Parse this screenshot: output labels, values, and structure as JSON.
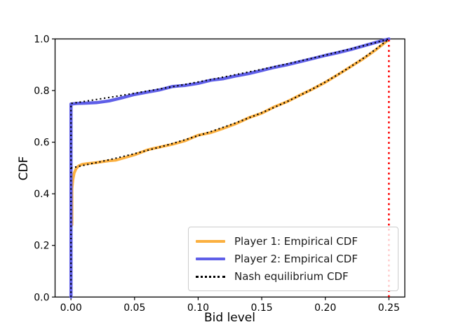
{
  "figure": {
    "xlabel": "Bid level",
    "ylabel": "CDF",
    "x_tick_labels": [
      "0.00",
      "0.05",
      "0.10",
      "0.15",
      "0.20",
      "0.25"
    ],
    "x_tick_values": [
      0,
      0.05,
      0.1,
      0.15,
      0.2,
      0.25
    ],
    "y_tick_labels": [
      "0.0",
      "0.2",
      "0.4",
      "0.6",
      "0.8",
      "1.0"
    ],
    "y_tick_values": [
      0,
      0.2,
      0.4,
      0.6,
      0.8,
      1.0
    ]
  },
  "legend": {
    "items": [
      {
        "label": "Player 1: Empirical CDF",
        "color": "#FBB040",
        "style": "solid"
      },
      {
        "label": "Player 2: Empirical CDF",
        "color": "#5F5FE8",
        "style": "solid"
      },
      {
        "label": "Nash equilibrium CDF",
        "color": "#000000",
        "style": "dotted"
      }
    ],
    "position": "lower right"
  },
  "chart_data": {
    "type": "line",
    "title": "",
    "xlabel": "Bid level",
    "ylabel": "CDF",
    "xlim": [
      -0.0125,
      0.2625
    ],
    "ylim": [
      0,
      1
    ],
    "grid": false,
    "legend_position": "lower right",
    "series": [
      {
        "name": "Player 1: Empirical CDF",
        "color": "#FBB040",
        "style": "solid",
        "width": 4,
        "points": [
          [
            0.0008,
            0.28
          ],
          [
            0.0008,
            0.42
          ],
          [
            0.0015,
            0.455
          ],
          [
            0.0025,
            0.48
          ],
          [
            0.004,
            0.497
          ],
          [
            0.006,
            0.508
          ],
          [
            0.009,
            0.5145
          ],
          [
            0.013,
            0.517
          ],
          [
            0.02,
            0.521
          ],
          [
            0.03,
            0.528
          ],
          [
            0.035,
            0.53
          ],
          [
            0.04,
            0.537
          ],
          [
            0.05,
            0.551
          ],
          [
            0.06,
            0.57
          ],
          [
            0.065,
            0.576
          ],
          [
            0.07,
            0.581
          ],
          [
            0.08,
            0.592
          ],
          [
            0.09,
            0.606
          ],
          [
            0.1,
            0.627
          ],
          [
            0.105,
            0.632
          ],
          [
            0.11,
            0.637
          ],
          [
            0.12,
            0.654
          ],
          [
            0.13,
            0.672
          ],
          [
            0.14,
            0.695
          ],
          [
            0.15,
            0.712
          ],
          [
            0.16,
            0.737
          ],
          [
            0.17,
            0.757
          ],
          [
            0.18,
            0.782
          ],
          [
            0.19,
            0.806
          ],
          [
            0.2,
            0.832
          ],
          [
            0.21,
            0.862
          ],
          [
            0.22,
            0.893
          ],
          [
            0.23,
            0.924
          ],
          [
            0.24,
            0.959
          ],
          [
            0.25,
            0.998
          ]
        ]
      },
      {
        "name": "Player 2: Empirical CDF",
        "color": "#5F5FE8",
        "style": "solid",
        "width": 4.5,
        "points": [
          [
            0,
            0
          ],
          [
            0,
            0.748
          ],
          [
            0.005,
            0.75
          ],
          [
            0.01,
            0.751
          ],
          [
            0.02,
            0.753
          ],
          [
            0.03,
            0.76
          ],
          [
            0.04,
            0.772
          ],
          [
            0.05,
            0.785
          ],
          [
            0.06,
            0.794
          ],
          [
            0.07,
            0.803
          ],
          [
            0.08,
            0.816
          ],
          [
            0.09,
            0.82
          ],
          [
            0.1,
            0.828
          ],
          [
            0.11,
            0.84
          ],
          [
            0.12,
            0.846
          ],
          [
            0.13,
            0.857
          ],
          [
            0.14,
            0.866
          ],
          [
            0.15,
            0.878
          ],
          [
            0.16,
            0.89
          ],
          [
            0.17,
            0.9
          ],
          [
            0.18,
            0.912
          ],
          [
            0.19,
            0.924
          ],
          [
            0.2,
            0.936
          ],
          [
            0.21,
            0.947
          ],
          [
            0.22,
            0.959
          ],
          [
            0.23,
            0.973
          ],
          [
            0.24,
            0.987
          ],
          [
            0.25,
            1.0
          ]
        ]
      },
      {
        "name": "Nash equilibrium CDF (player 1)",
        "color": "#000000",
        "style": "dotted",
        "width": 2.1,
        "points": [
          [
            0,
            0.5
          ],
          [
            0.01,
            0.5102
          ],
          [
            0.02,
            0.5208
          ],
          [
            0.03,
            0.5319
          ],
          [
            0.04,
            0.5435
          ],
          [
            0.05,
            0.5556
          ],
          [
            0.06,
            0.5682
          ],
          [
            0.07,
            0.5814
          ],
          [
            0.08,
            0.5952
          ],
          [
            0.09,
            0.6098
          ],
          [
            0.1,
            0.625
          ],
          [
            0.11,
            0.641
          ],
          [
            0.12,
            0.6579
          ],
          [
            0.13,
            0.6757
          ],
          [
            0.14,
            0.6944
          ],
          [
            0.15,
            0.7143
          ],
          [
            0.16,
            0.7353
          ],
          [
            0.17,
            0.7576
          ],
          [
            0.18,
            0.7813
          ],
          [
            0.19,
            0.8065
          ],
          [
            0.2,
            0.8333
          ],
          [
            0.21,
            0.8621
          ],
          [
            0.22,
            0.8929
          ],
          [
            0.23,
            0.9259
          ],
          [
            0.24,
            0.9615
          ],
          [
            0.25,
            1.0
          ]
        ]
      },
      {
        "name": "Nash equilibrium CDF (player 2)",
        "color": "#000000",
        "style": "dotted",
        "width": 2.1,
        "points": [
          [
            0,
            0
          ],
          [
            0,
            0.75
          ],
          [
            0.01,
            0.7576
          ],
          [
            0.02,
            0.7653
          ],
          [
            0.03,
            0.7732
          ],
          [
            0.04,
            0.7813
          ],
          [
            0.05,
            0.7895
          ],
          [
            0.06,
            0.7979
          ],
          [
            0.07,
            0.8065
          ],
          [
            0.08,
            0.8152
          ],
          [
            0.09,
            0.8242
          ],
          [
            0.1,
            0.8333
          ],
          [
            0.11,
            0.8427
          ],
          [
            0.12,
            0.8523
          ],
          [
            0.13,
            0.8621
          ],
          [
            0.14,
            0.8721
          ],
          [
            0.15,
            0.8824
          ],
          [
            0.16,
            0.8929
          ],
          [
            0.17,
            0.9036
          ],
          [
            0.18,
            0.9146
          ],
          [
            0.19,
            0.9259
          ],
          [
            0.2,
            0.9375
          ],
          [
            0.21,
            0.9494
          ],
          [
            0.22,
            0.9615
          ],
          [
            0.23,
            0.974
          ],
          [
            0.24,
            0.9868
          ],
          [
            0.25,
            1.0
          ]
        ]
      },
      {
        "name": "Bid cap reference line",
        "color": "#FF0000",
        "style": "dotted",
        "width": 2.6,
        "points": [
          [
            0.25,
            0
          ],
          [
            0.25,
            1
          ]
        ]
      }
    ]
  }
}
